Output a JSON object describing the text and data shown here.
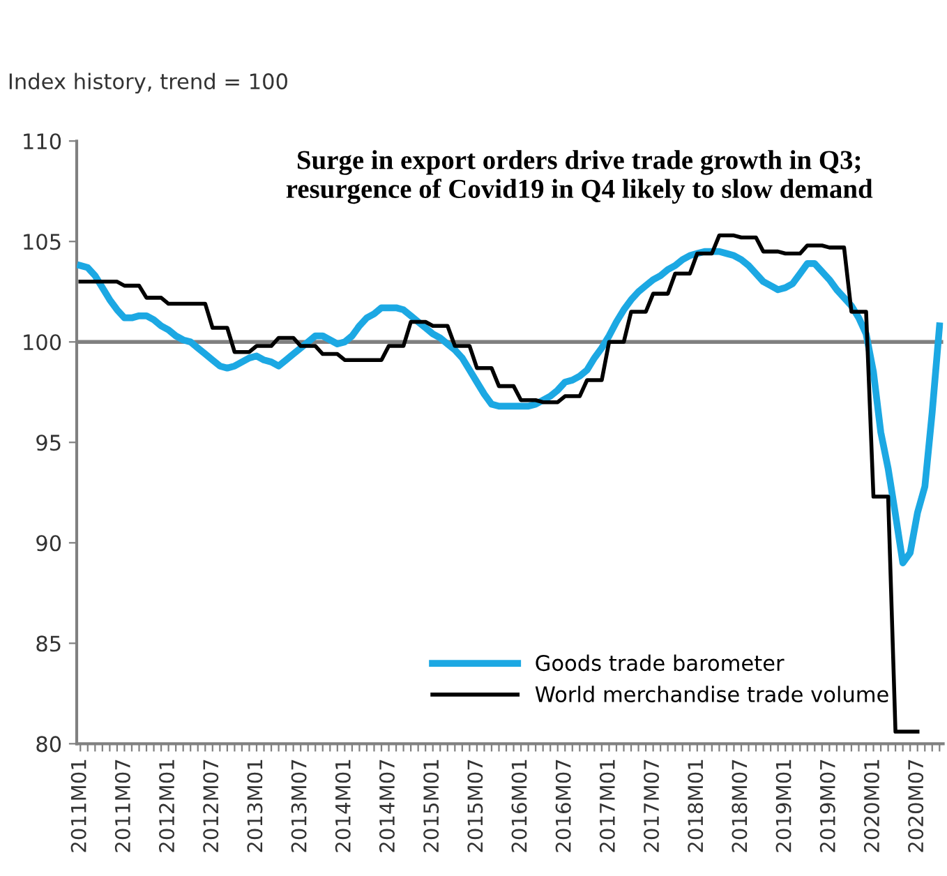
{
  "chart_data": {
    "type": "line",
    "title": "Surge in export orders drive trade growth in Q3;\nresurgence of Covid19 in Q4 likely to slow demand",
    "annotations": [
      "Index history, trend = 100"
    ],
    "categories": [
      "2011M01",
      null,
      null,
      null,
      null,
      null,
      "2011M07",
      null,
      null,
      null,
      null,
      null,
      "2012M01",
      null,
      null,
      null,
      null,
      null,
      "2012M07",
      null,
      null,
      null,
      null,
      null,
      "2013M01",
      null,
      null,
      null,
      null,
      null,
      "2013M07",
      null,
      null,
      null,
      null,
      null,
      "2014M01",
      null,
      null,
      null,
      null,
      null,
      "2014M07",
      null,
      null,
      null,
      null,
      null,
      "2015M01",
      null,
      null,
      null,
      null,
      null,
      "2015M07",
      null,
      null,
      null,
      null,
      null,
      "2016M01",
      null,
      null,
      null,
      null,
      null,
      "2016M07",
      null,
      null,
      null,
      null,
      null,
      "2017M01",
      null,
      null,
      null,
      null,
      null,
      "2017M07",
      null,
      null,
      null,
      null,
      null,
      "2018M01",
      null,
      null,
      null,
      null,
      null,
      "2018M07",
      null,
      null,
      null,
      null,
      null,
      "2019M01",
      null,
      null,
      null,
      null,
      null,
      "2019M07",
      null,
      null,
      null,
      null,
      null,
      "2020M01",
      null,
      null,
      null,
      null,
      null,
      "2020M07",
      null,
      null,
      null
    ],
    "series": [
      {
        "name": "Goods trade barometer",
        "color": "#1ca8e3",
        "values": [
          103.8,
          103.7,
          103.3,
          102.7,
          102.1,
          101.6,
          101.2,
          101.2,
          101.3,
          101.3,
          101.1,
          100.8,
          100.6,
          100.3,
          100.1,
          100.0,
          99.7,
          99.4,
          99.1,
          98.8,
          98.7,
          98.8,
          99.0,
          99.2,
          99.3,
          99.1,
          99.0,
          98.8,
          99.1,
          99.4,
          99.7,
          100.0,
          100.3,
          100.3,
          100.1,
          99.9,
          100.0,
          100.3,
          100.8,
          101.2,
          101.4,
          101.7,
          101.7,
          101.7,
          101.6,
          101.3,
          101.0,
          100.7,
          100.4,
          100.2,
          99.9,
          99.6,
          99.2,
          98.6,
          98.0,
          97.4,
          96.9,
          96.8,
          96.8,
          96.8,
          96.8,
          96.8,
          96.9,
          97.1,
          97.3,
          97.6,
          98.0,
          98.1,
          98.3,
          98.6,
          99.2,
          99.7,
          100.3,
          101.0,
          101.6,
          102.1,
          102.5,
          102.8,
          103.1,
          103.3,
          103.6,
          103.8,
          104.1,
          104.3,
          104.4,
          104.5,
          104.5,
          104.5,
          104.4,
          104.3,
          104.1,
          103.8,
          103.4,
          103.0,
          102.8,
          102.6,
          102.7,
          102.9,
          103.4,
          103.9,
          103.9,
          103.5,
          103.1,
          102.6,
          102.2,
          101.8,
          101.2,
          100.4,
          98.5,
          95.5,
          93.7,
          91.4,
          89.0,
          89.5,
          91.5,
          92.8,
          96.5,
          100.8
        ]
      },
      {
        "name": "World merchandise trade volume",
        "color": "#000000",
        "values": [
          103.0,
          103.0,
          103.0,
          103.0,
          103.0,
          103.0,
          102.8,
          102.8,
          102.8,
          102.2,
          102.2,
          102.2,
          101.9,
          101.9,
          101.9,
          101.9,
          101.9,
          101.9,
          100.7,
          100.7,
          100.7,
          99.5,
          99.5,
          99.5,
          99.8,
          99.8,
          99.8,
          100.2,
          100.2,
          100.2,
          99.8,
          99.8,
          99.8,
          99.4,
          99.4,
          99.4,
          99.1,
          99.1,
          99.1,
          99.1,
          99.1,
          99.1,
          99.8,
          99.8,
          99.8,
          101.0,
          101.0,
          101.0,
          100.8,
          100.8,
          100.8,
          99.8,
          99.8,
          99.8,
          98.7,
          98.7,
          98.7,
          97.8,
          97.8,
          97.8,
          97.1,
          97.1,
          97.1,
          97.0,
          97.0,
          97.0,
          97.3,
          97.3,
          97.3,
          98.1,
          98.1,
          98.1,
          100.0,
          100.0,
          100.0,
          101.5,
          101.5,
          101.5,
          102.4,
          102.4,
          102.4,
          103.4,
          103.4,
          103.4,
          104.4,
          104.4,
          104.4,
          105.3,
          105.3,
          105.3,
          105.2,
          105.2,
          105.2,
          104.5,
          104.5,
          104.5,
          104.4,
          104.4,
          104.4,
          104.8,
          104.8,
          104.8,
          104.7,
          104.7,
          104.7,
          101.5,
          101.5,
          101.5,
          92.3,
          92.3,
          92.3,
          80.6,
          80.6,
          80.6,
          80.6,
          null,
          null,
          null
        ]
      }
    ],
    "ylim": [
      80,
      110
    ],
    "yticks": [
      80,
      85,
      90,
      95,
      100,
      105,
      110
    ],
    "ref_lines": [
      {
        "axis": "y",
        "value": 100,
        "color": "#808080"
      }
    ],
    "grid": false,
    "legend": "bottom right",
    "marker": "none",
    "line_style": "solid"
  }
}
